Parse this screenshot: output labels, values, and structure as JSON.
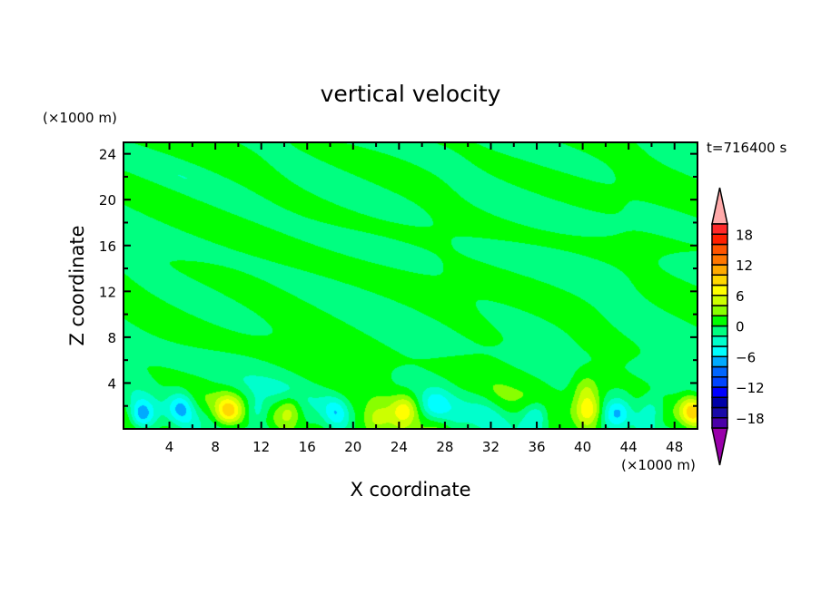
{
  "chart_data": {
    "type": "heatmap",
    "title": "vertical velocity",
    "xlabel": "X coordinate",
    "ylabel": "Z coordinate",
    "x_unit": "(×1000 m)",
    "y_unit": "(×1000 m)",
    "time_label": "t=716400 s",
    "xlim": [
      0,
      50
    ],
    "ylim": [
      0,
      25
    ],
    "x_ticks": [
      4,
      8,
      12,
      16,
      20,
      24,
      28,
      32,
      36,
      40,
      44,
      48
    ],
    "y_ticks": [
      4,
      8,
      12,
      16,
      20,
      24
    ],
    "colorbar": {
      "levels": [
        -20,
        -18,
        -16,
        -14,
        -12,
        -10,
        -8,
        -6,
        -4,
        -2,
        0,
        2,
        4,
        6,
        8,
        10,
        12,
        14,
        16,
        18,
        20
      ],
      "tick_labels": [
        "18",
        "12",
        "6",
        "0",
        "−6",
        "−12",
        "−18"
      ],
      "tick_values": [
        18,
        12,
        6,
        0,
        -6,
        -12,
        -18
      ],
      "colors": [
        "#4a00a8",
        "#1a0aa8",
        "#0000a8",
        "#0000ff",
        "#0044ff",
        "#0066ff",
        "#00aaff",
        "#00ffff",
        "#00ffcc",
        "#00ff80",
        "#00ff00",
        "#88ff00",
        "#ccff00",
        "#ffff00",
        "#ffd700",
        "#ffaa00",
        "#ff7700",
        "#ff5500",
        "#ff2000",
        "#ff2a2a"
      ],
      "over_color": "#ffaaaa",
      "under_color": "#9900aa",
      "extend": "both"
    },
    "grid": false
  }
}
